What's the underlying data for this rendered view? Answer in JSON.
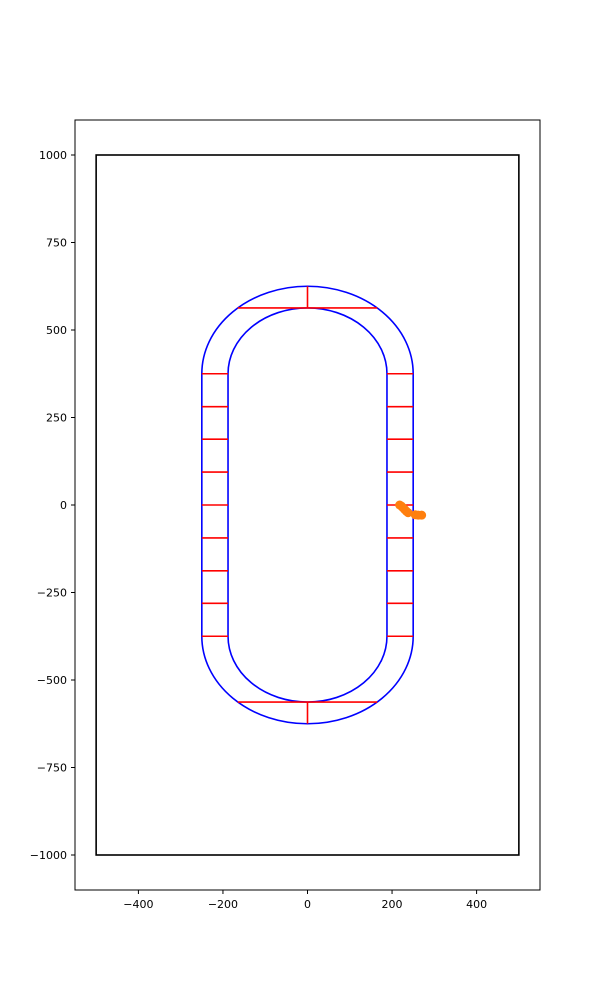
{
  "chart_data": {
    "type": "scatter",
    "title": "",
    "xlabel": "",
    "ylabel": "",
    "xlim": [
      -550,
      550
    ],
    "ylim": [
      -1100,
      1100
    ],
    "grid": false,
    "xticks": [
      -400,
      -200,
      0,
      200,
      400
    ],
    "yticks": [
      -1000,
      -750,
      -500,
      -250,
      0,
      250,
      500,
      750,
      1000
    ],
    "xtick_labels": [
      "−400",
      "−200",
      "0",
      "200",
      "400"
    ],
    "ytick_labels": [
      "−1000",
      "−750",
      "−500",
      "−250",
      "0",
      "250",
      "500",
      "750",
      "1000"
    ],
    "colors": {
      "boundary": "#000000",
      "track": "#0000ff",
      "crosslines": "#ff0000",
      "points": "#ff7f0e"
    },
    "boundary": {
      "x": [
        -500,
        500
      ],
      "y": [
        -1000,
        1000
      ]
    },
    "track": {
      "outer": {
        "half_width": 250,
        "straight_half_length": 375
      },
      "inner": {
        "half_width": 188,
        "straight_half_length": 375
      }
    },
    "crosslines": [
      {
        "x": [
          -250,
          -188
        ],
        "y": [
          375,
          375
        ]
      },
      {
        "x": [
          -250,
          -188
        ],
        "y": [
          281,
          281
        ]
      },
      {
        "x": [
          -250,
          -188
        ],
        "y": [
          188,
          188
        ]
      },
      {
        "x": [
          -250,
          -188
        ],
        "y": [
          94,
          94
        ]
      },
      {
        "x": [
          -250,
          -188
        ],
        "y": [
          0,
          0
        ]
      },
      {
        "x": [
          -250,
          -188
        ],
        "y": [
          -94,
          -94
        ]
      },
      {
        "x": [
          -250,
          -188
        ],
        "y": [
          -188,
          -188
        ]
      },
      {
        "x": [
          -250,
          -188
        ],
        "y": [
          -281,
          -281
        ]
      },
      {
        "x": [
          -250,
          -188
        ],
        "y": [
          -375,
          -375
        ]
      },
      {
        "x": [
          188,
          250
        ],
        "y": [
          375,
          375
        ]
      },
      {
        "x": [
          188,
          250
        ],
        "y": [
          281,
          281
        ]
      },
      {
        "x": [
          188,
          250
        ],
        "y": [
          188,
          188
        ]
      },
      {
        "x": [
          188,
          250
        ],
        "y": [
          94,
          94
        ]
      },
      {
        "x": [
          188,
          250
        ],
        "y": [
          0,
          0
        ]
      },
      {
        "x": [
          188,
          250
        ],
        "y": [
          -94,
          -94
        ]
      },
      {
        "x": [
          188,
          250
        ],
        "y": [
          -188,
          -188
        ]
      },
      {
        "x": [
          188,
          250
        ],
        "y": [
          -281,
          -281
        ]
      },
      {
        "x": [
          188,
          250
        ],
        "y": [
          -375,
          -375
        ]
      },
      {
        "x": [
          -165,
          165
        ],
        "y": [
          563,
          563
        ]
      },
      {
        "x": [
          0,
          0
        ],
        "y": [
          563,
          625
        ]
      },
      {
        "x": [
          -165,
          165
        ],
        "y": [
          -563,
          -563
        ]
      },
      {
        "x": [
          0,
          0
        ],
        "y": [
          -563,
          -625
        ]
      }
    ],
    "series": [
      {
        "x": [
          218,
          222,
          226,
          230,
          234,
          238,
          255,
          262,
          270
        ],
        "y": [
          0,
          -3,
          -8,
          -13,
          -18,
          -22,
          -28,
          -29,
          -29
        ]
      }
    ]
  }
}
